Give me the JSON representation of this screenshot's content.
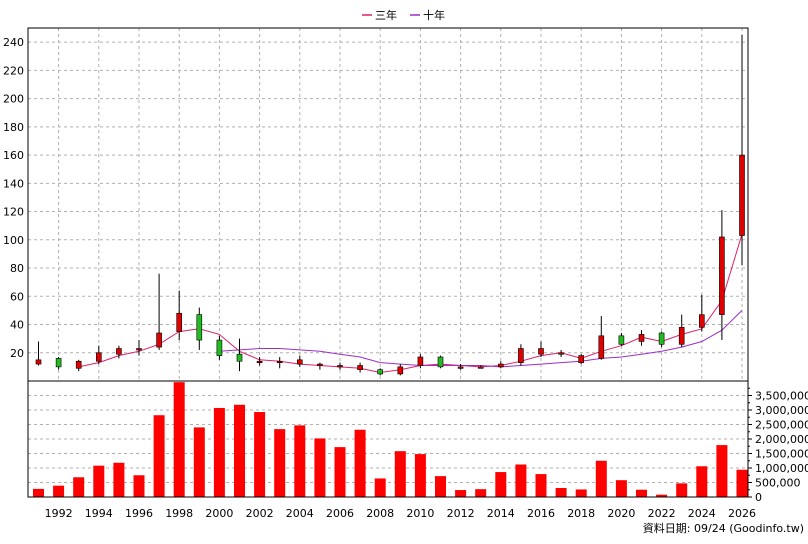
{
  "chart_data": [
    {
      "type": "candlestick",
      "legend": [
        {
          "name": "三年",
          "color": "#e0206a"
        },
        {
          "name": "十年",
          "color": "#9a30c8"
        }
      ],
      "legend_position": "top-center",
      "ylim": [
        0,
        250
      ],
      "y_ticks": [
        20,
        40,
        60,
        80,
        100,
        120,
        140,
        160,
        180,
        200,
        220,
        240
      ],
      "grid": true,
      "up_color": "#e00000",
      "down_color": "#22bb22",
      "candles": [
        {
          "year": 1991,
          "open": 12,
          "close": 15,
          "high": 28,
          "low": 11
        },
        {
          "year": 1992,
          "open": 16,
          "close": 10,
          "high": 17,
          "low": 8
        },
        {
          "year": 1993,
          "open": 9,
          "close": 14,
          "high": 15,
          "low": 7
        },
        {
          "year": 1994,
          "open": 14,
          "close": 20,
          "high": 25,
          "low": 12
        },
        {
          "year": 1995,
          "open": 19,
          "close": 23,
          "high": 25,
          "low": 16
        },
        {
          "year": 1996,
          "open": 22,
          "close": 23,
          "high": 29,
          "low": 18
        },
        {
          "year": 1997,
          "open": 24,
          "close": 34,
          "high": 76,
          "low": 22
        },
        {
          "year": 1998,
          "open": 35,
          "close": 48,
          "high": 64,
          "low": 29
        },
        {
          "year": 1999,
          "open": 47,
          "close": 29,
          "high": 52,
          "low": 22
        },
        {
          "year": 2000,
          "open": 29,
          "close": 18,
          "high": 32,
          "low": 15
        },
        {
          "year": 2001,
          "open": 19,
          "close": 14,
          "high": 30,
          "low": 7
        },
        {
          "year": 2002,
          "open": 13,
          "close": 14,
          "high": 17,
          "low": 11
        },
        {
          "year": 2003,
          "open": 13,
          "close": 14,
          "high": 17,
          "low": 9
        },
        {
          "year": 2004,
          "open": 12,
          "close": 15,
          "high": 18,
          "low": 10
        },
        {
          "year": 2005,
          "open": 12,
          "close": 12,
          "high": 13,
          "low": 8
        },
        {
          "year": 2006,
          "open": 11,
          "close": 11,
          "high": 13,
          "low": 8
        },
        {
          "year": 2007,
          "open": 8,
          "close": 11,
          "high": 13,
          "low": 6
        },
        {
          "year": 2008,
          "open": 8,
          "close": 5,
          "high": 9,
          "low": 4
        },
        {
          "year": 2009,
          "open": 5,
          "close": 10,
          "high": 12,
          "low": 4
        },
        {
          "year": 2010,
          "open": 11,
          "close": 17,
          "high": 19,
          "low": 9
        },
        {
          "year": 2011,
          "open": 17,
          "close": 10,
          "high": 18,
          "low": 9
        },
        {
          "year": 2012,
          "open": 10,
          "close": 10,
          "high": 12,
          "low": 8
        },
        {
          "year": 2013,
          "open": 10,
          "close": 10,
          "high": 11,
          "low": 9
        },
        {
          "year": 2014,
          "open": 10,
          "close": 12,
          "high": 14,
          "low": 9
        },
        {
          "year": 2015,
          "open": 13,
          "close": 23,
          "high": 26,
          "low": 11
        },
        {
          "year": 2016,
          "open": 19,
          "close": 23,
          "high": 28,
          "low": 17
        },
        {
          "year": 2017,
          "open": 19,
          "close": 20,
          "high": 22,
          "low": 17
        },
        {
          "year": 2018,
          "open": 13,
          "close": 18,
          "high": 19,
          "low": 12
        },
        {
          "year": 2019,
          "open": 16,
          "close": 32,
          "high": 46,
          "low": 15
        },
        {
          "year": 2020,
          "open": 32,
          "close": 26,
          "high": 34,
          "low": 25
        },
        {
          "year": 2021,
          "open": 28,
          "close": 33,
          "high": 36,
          "low": 25
        },
        {
          "year": 2022,
          "open": 34,
          "close": 26,
          "high": 35,
          "low": 24
        },
        {
          "year": 2023,
          "open": 26,
          "close": 38,
          "high": 47,
          "low": 24
        },
        {
          "year": 2024,
          "open": 38,
          "close": 47,
          "high": 61,
          "low": 35
        },
        {
          "year": 2025,
          "open": 47,
          "close": 102,
          "high": 121,
          "low": 29
        },
        {
          "year": 2026,
          "open": 103,
          "close": 160,
          "high": 245,
          "low": 82
        }
      ],
      "series": [
        {
          "name": "三年",
          "values": [
            [
              1993,
              10
            ],
            [
              1994,
              13
            ],
            [
              1995,
              18
            ],
            [
              1996,
              21
            ],
            [
              1997,
              26
            ],
            [
              1998,
              35
            ],
            [
              1999,
              37
            ],
            [
              2000,
              33
            ],
            [
              2001,
              21
            ],
            [
              2002,
              15
            ],
            [
              2003,
              14
            ],
            [
              2004,
              12
            ],
            [
              2005,
              11
            ],
            [
              2006,
              10
            ],
            [
              2007,
              9
            ],
            [
              2008,
              6
            ],
            [
              2009,
              8
            ],
            [
              2010,
              11
            ],
            [
              2011,
              12
            ],
            [
              2012,
              11
            ],
            [
              2013,
              10
            ],
            [
              2014,
              11
            ],
            [
              2015,
              14
            ],
            [
              2016,
              18
            ],
            [
              2017,
              20
            ],
            [
              2018,
              16
            ],
            [
              2019,
              21
            ],
            [
              2020,
              25
            ],
            [
              2021,
              31
            ],
            [
              2022,
              28
            ],
            [
              2023,
              33
            ],
            [
              2024,
              37
            ],
            [
              2025,
              57
            ],
            [
              2026,
              104
            ]
          ]
        },
        {
          "name": "十年",
          "values": [
            [
              2000,
              21
            ],
            [
              2001,
              22
            ],
            [
              2002,
              23
            ],
            [
              2003,
              23
            ],
            [
              2004,
              22
            ],
            [
              2005,
              21
            ],
            [
              2006,
              19
            ],
            [
              2007,
              17
            ],
            [
              2008,
              13
            ],
            [
              2009,
              12
            ],
            [
              2010,
              11
            ],
            [
              2011,
              11
            ],
            [
              2012,
              11
            ],
            [
              2013,
              11
            ],
            [
              2014,
              10
            ],
            [
              2015,
              11
            ],
            [
              2016,
              12
            ],
            [
              2017,
              13
            ],
            [
              2018,
              14
            ],
            [
              2019,
              16
            ],
            [
              2020,
              17
            ],
            [
              2021,
              19
            ],
            [
              2022,
              21
            ],
            [
              2023,
              24
            ],
            [
              2024,
              28
            ],
            [
              2025,
              36
            ],
            [
              2026,
              50
            ]
          ]
        }
      ]
    },
    {
      "type": "bar",
      "ylim": [
        0,
        4000000
      ],
      "y_tick_labels": [
        "0",
        "500,000",
        "1,000,000",
        "1,500,000",
        "2,000,000",
        "2,500,000",
        "3,000,000",
        "3,500,000"
      ],
      "y_tick_values": [
        0,
        500000,
        1000000,
        1500000,
        2000000,
        2500000,
        3000000,
        3500000
      ],
      "bar_color": "#ff0000",
      "years": [
        1991,
        1992,
        1993,
        1994,
        1995,
        1996,
        1997,
        1998,
        1999,
        2000,
        2001,
        2002,
        2003,
        2004,
        2005,
        2006,
        2007,
        2008,
        2009,
        2010,
        2011,
        2012,
        2013,
        2014,
        2015,
        2016,
        2017,
        2018,
        2019,
        2020,
        2021,
        2022,
        2023,
        2024,
        2025,
        2026
      ],
      "values": [
        280000,
        390000,
        680000,
        1080000,
        1180000,
        750000,
        2820000,
        3960000,
        2400000,
        3070000,
        3180000,
        2930000,
        2340000,
        2470000,
        2020000,
        1720000,
        2320000,
        640000,
        1580000,
        1480000,
        720000,
        240000,
        270000,
        860000,
        1120000,
        790000,
        310000,
        260000,
        1250000,
        580000,
        250000,
        80000,
        470000,
        1060000,
        1790000,
        940000
      ]
    }
  ],
  "x_tick_labels": [
    "1992",
    "1994",
    "1996",
    "1998",
    "2000",
    "2002",
    "2004",
    "2006",
    "2008",
    "2010",
    "2012",
    "2014",
    "2016",
    "2018",
    "2020",
    "2022",
    "2024",
    "2026"
  ],
  "footer": "資料日期: 09/24  (Goodinfo.tw)"
}
